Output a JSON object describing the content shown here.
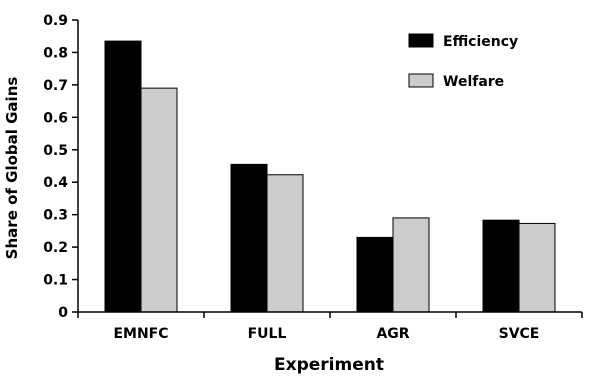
{
  "chart_data": {
    "type": "bar",
    "title": "",
    "xlabel": "Experiment",
    "ylabel": "Share of Global Gains",
    "categories": [
      "EMNFC",
      "FULL",
      "AGR",
      "SVCE"
    ],
    "series": [
      {
        "name": "Efficiency",
        "values": [
          0.835,
          0.455,
          0.23,
          0.283
        ],
        "color": "#000000"
      },
      {
        "name": "Welfare",
        "values": [
          0.69,
          0.423,
          0.29,
          0.273
        ],
        "color": "#cccccc"
      }
    ],
    "ylim": [
      0,
      0.9
    ],
    "yticks": [
      "0",
      "0.1",
      "0.2",
      "0.3",
      "0.4",
      "0.5",
      "0.6",
      "0.7",
      "0.8",
      "0.9"
    ],
    "grid": false,
    "legend_position": "top-right"
  }
}
